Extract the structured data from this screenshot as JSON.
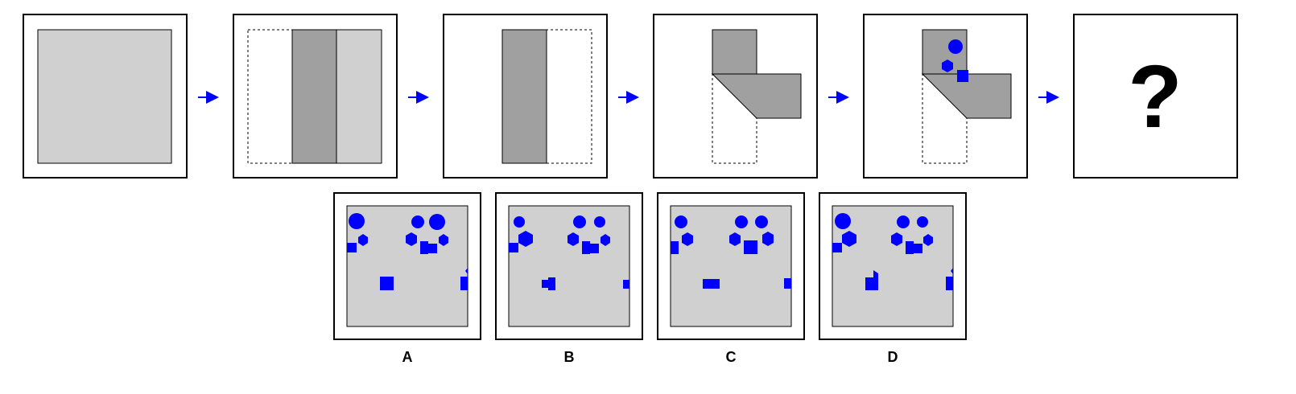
{
  "question_mark": "?",
  "options": [
    {
      "label": "A"
    },
    {
      "label": "B"
    },
    {
      "label": "C"
    },
    {
      "label": "D"
    }
  ],
  "colors": {
    "paper": "#d0d0d0",
    "folded": "#a0a0a0",
    "hole": "#0000ff",
    "arrow": "#0000ff",
    "frame": "#000000"
  }
}
